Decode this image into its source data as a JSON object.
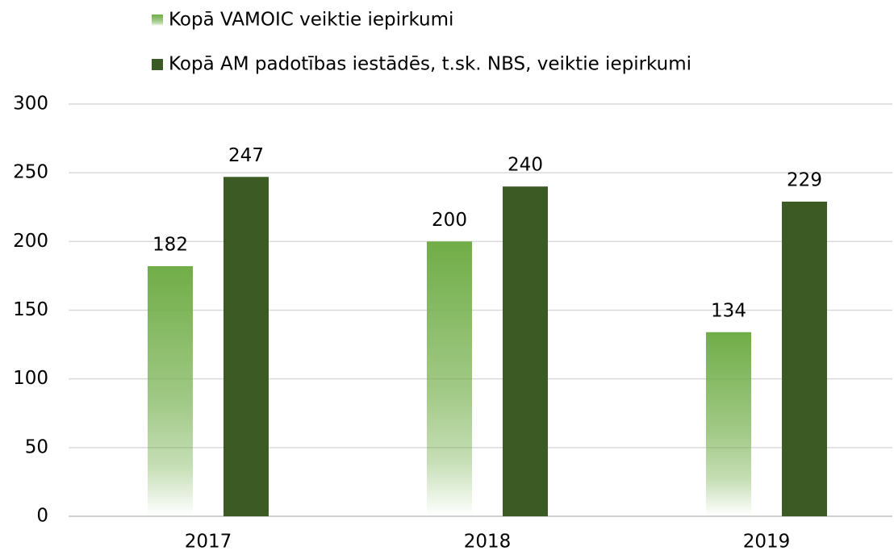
{
  "chart_data": {
    "type": "bar",
    "categories": [
      "2017",
      "2018",
      "2019"
    ],
    "series": [
      {
        "name": "Kopā VAMOIC veiktie iepirkumi",
        "color": "#70ad47",
        "gradient": true,
        "values": [
          182,
          200,
          134
        ]
      },
      {
        "name": "Kopā AM padotības iestādēs, t.sk. NBS, veiktie iepirkumi",
        "color": "#3b5a24",
        "values": [
          247,
          240,
          229
        ]
      }
    ],
    "ylim": [
      0,
      300
    ],
    "yticks": [
      0,
      50,
      100,
      150,
      200,
      250,
      300
    ],
    "grid": true,
    "legend": "top"
  }
}
